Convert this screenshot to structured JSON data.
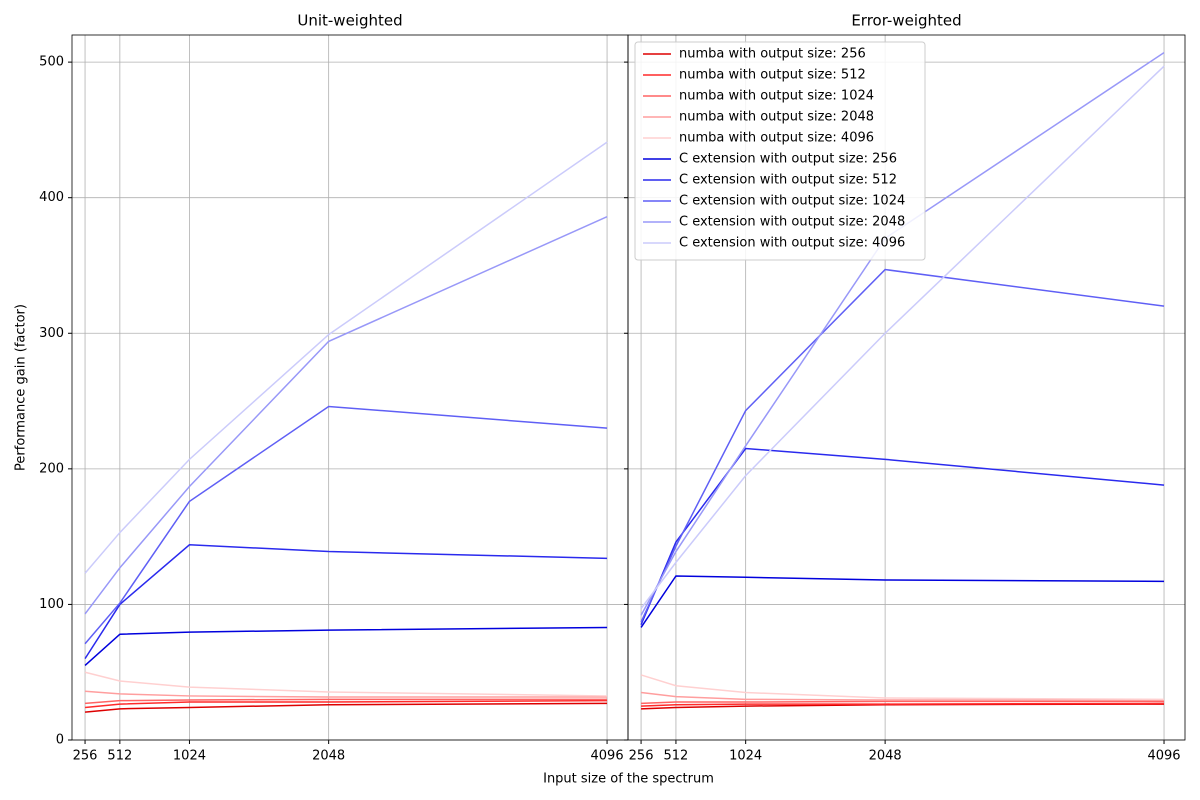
{
  "chart_data": [
    {
      "type": "line",
      "title": "Unit-weighted",
      "xlabel": "Input size of the spectrum",
      "ylabel": "Performance gain (factor)",
      "x": [
        256,
        512,
        1024,
        2048,
        4096
      ],
      "xlim": [
        160,
        4250
      ],
      "ylim": [
        0,
        520
      ],
      "xticks": [
        256,
        512,
        1024,
        2048,
        4096
      ],
      "yticks": [
        0,
        100,
        200,
        300,
        400,
        500
      ],
      "grid": true,
      "series": [
        {
          "color": "#dd0000",
          "values": [
            20.6,
            23,
            24,
            26,
            27
          ]
        },
        {
          "color": "#ff2a2a",
          "values": [
            24,
            26.5,
            28,
            28,
            29
          ]
        },
        {
          "color": "#ff6464",
          "values": [
            27,
            29,
            29.5,
            30,
            30
          ]
        },
        {
          "color": "#ff9e9e",
          "values": [
            36,
            34,
            32.5,
            31.7,
            31.7
          ]
        },
        {
          "color": "#ffd0d0",
          "values": [
            50,
            43.5,
            39,
            35.4,
            32.5
          ]
        },
        {
          "color": "#0000dd",
          "values": [
            55,
            78,
            79.6,
            81,
            83
          ]
        },
        {
          "color": "#2a2aee",
          "values": [
            60,
            100,
            144,
            139,
            134
          ]
        },
        {
          "color": "#5f5ff5",
          "values": [
            71,
            101,
            176,
            246,
            230
          ]
        },
        {
          "color": "#9898f8",
          "values": [
            93,
            127,
            187,
            294,
            386
          ]
        },
        {
          "color": "#cbcbfb",
          "values": [
            123,
            153,
            207,
            299,
            441
          ]
        }
      ]
    },
    {
      "type": "line",
      "title": "Error-weighted",
      "x": [
        256,
        512,
        1024,
        2048,
        4096
      ],
      "xlim": [
        160,
        4250
      ],
      "ylim": [
        0,
        520
      ],
      "xticks": [
        256,
        512,
        1024,
        2048,
        4096
      ],
      "yticks": [
        0,
        100,
        200,
        300,
        400,
        500
      ],
      "grid": true,
      "legend": "upper left",
      "series": [
        {
          "name": "numba with output size: 256",
          "color": "#dd0000",
          "values": [
            23,
            24,
            25,
            26,
            26.5
          ]
        },
        {
          "name": "numba with output size: 512",
          "color": "#ff2a2a",
          "values": [
            25,
            26,
            26.5,
            26.5,
            27
          ]
        },
        {
          "name": "numba with output size: 1024",
          "color": "#ff6464",
          "values": [
            27,
            28,
            28,
            28.5,
            28.5
          ]
        },
        {
          "name": "numba with output size: 2048",
          "color": "#ff9e9e",
          "values": [
            35,
            32,
            30,
            29.5,
            29.5
          ]
        },
        {
          "name": "numba with output size: 4096",
          "color": "#ffd0d0",
          "values": [
            48,
            40,
            35,
            31,
            30
          ]
        },
        {
          "name": "C extension with output size: 256",
          "color": "#0000dd",
          "values": [
            83,
            121,
            120,
            118,
            117
          ]
        },
        {
          "name": "C extension with output size: 512",
          "color": "#2a2aee",
          "values": [
            85,
            146,
            215,
            207,
            188
          ]
        },
        {
          "name": "C extension with output size: 1024",
          "color": "#5f5ff5",
          "values": [
            87,
            143,
            243,
            347,
            320
          ]
        },
        {
          "name": "C extension with output size: 2048",
          "color": "#9898f8",
          "values": [
            92,
            139,
            217,
            370,
            507
          ]
        },
        {
          "name": "C extension with output size: 4096",
          "color": "#cbcbfb",
          "values": [
            97,
            131,
            195,
            300,
            497
          ]
        }
      ]
    }
  ]
}
